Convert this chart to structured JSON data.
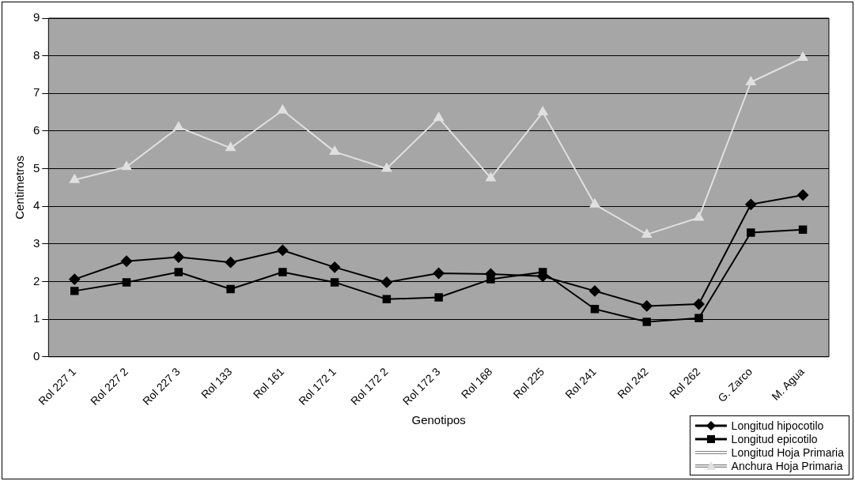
{
  "chart_data": {
    "type": "line",
    "xlabel": "Genotipos",
    "ylabel": "Centimetros",
    "categories": [
      "Rol 227 1",
      "Rol 227 2",
      "Rol 227 3",
      "Rol 133",
      "Rol 161",
      "Rol 172 1",
      "Rol 172 2",
      "Rol 172 3",
      "Rol 168",
      "Rol 225",
      "Rol 241",
      "Rol 242",
      "Rol 262",
      "G. Zarco",
      "M. Agua"
    ],
    "series": [
      {
        "name": "Longitud hipocotilo",
        "color": "#000000",
        "marker": "diamond",
        "values": [
          2.06,
          2.54,
          2.65,
          2.51,
          2.83,
          2.38,
          1.98,
          2.22,
          2.2,
          2.14,
          1.75,
          1.35,
          1.4,
          4.05,
          4.3
        ]
      },
      {
        "name": "Longitud epicotilo",
        "color": "#000000",
        "marker": "square",
        "values": [
          1.75,
          1.98,
          2.25,
          1.8,
          2.25,
          1.98,
          1.53,
          1.58,
          2.06,
          2.25,
          1.27,
          0.93,
          1.03,
          3.3,
          3.38
        ]
      },
      {
        "name": "Longitud Hoja Primaria",
        "color": "#ffffff",
        "marker": "none",
        "values": [
          null,
          null,
          null,
          null,
          null,
          null,
          null,
          null,
          null,
          null,
          null,
          null,
          null,
          null,
          null
        ]
      },
      {
        "name": "Anchura Hoja Primaria",
        "color": "#e0e0e0",
        "marker": "triangle",
        "values": [
          4.7,
          5.05,
          6.1,
          5.55,
          6.55,
          5.45,
          5.0,
          6.35,
          4.75,
          6.5,
          4.05,
          3.25,
          3.7,
          7.3,
          7.95
        ]
      }
    ],
    "ylim": [
      0,
      9
    ],
    "yticks": [
      0,
      1,
      2,
      3,
      4,
      5,
      6,
      7,
      8,
      9
    ],
    "grid": "y",
    "legend": "bottom right",
    "line_style": "solid"
  }
}
